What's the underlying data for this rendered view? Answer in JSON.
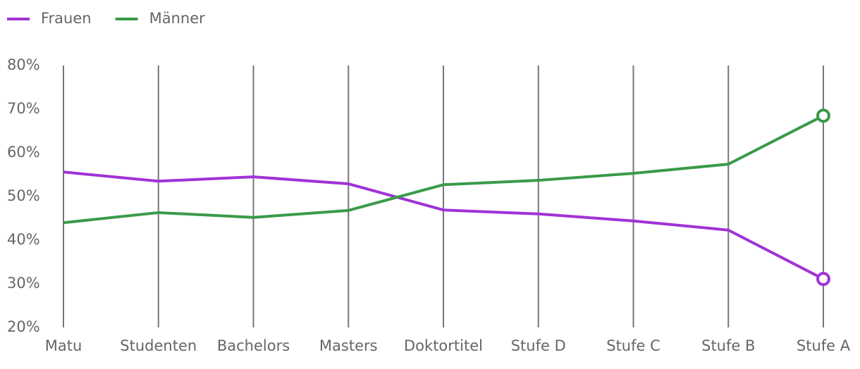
{
  "chart_data": {
    "type": "line",
    "categories": [
      "Matu",
      "Studenten",
      "Bachelors",
      "Masters",
      "Doktortitel",
      "Stufe D",
      "Stufe C",
      "Stufe B",
      "Stufe A"
    ],
    "series": [
      {
        "name": "Frauen",
        "color": "#a033d6",
        "values": [
          55.6,
          53.5,
          54.5,
          52.9,
          46.9,
          46.0,
          44.4,
          42.3,
          31.1
        ]
      },
      {
        "name": "Männer",
        "color": "#3a9a4a",
        "values": [
          44.0,
          46.3,
          45.2,
          46.8,
          52.7,
          53.7,
          55.3,
          57.4,
          68.5
        ]
      }
    ],
    "ylim": [
      20,
      80
    ],
    "yticks": [
      {
        "value": 20,
        "label": "20%"
      },
      {
        "value": 30,
        "label": "30%"
      },
      {
        "value": 40,
        "label": "40%"
      },
      {
        "value": 50,
        "label": "50%"
      },
      {
        "value": 60,
        "label": "60%"
      },
      {
        "value": 70,
        "label": "70%"
      },
      {
        "value": 80,
        "label": "80%"
      }
    ],
    "grid": true,
    "legend": "top-left"
  }
}
